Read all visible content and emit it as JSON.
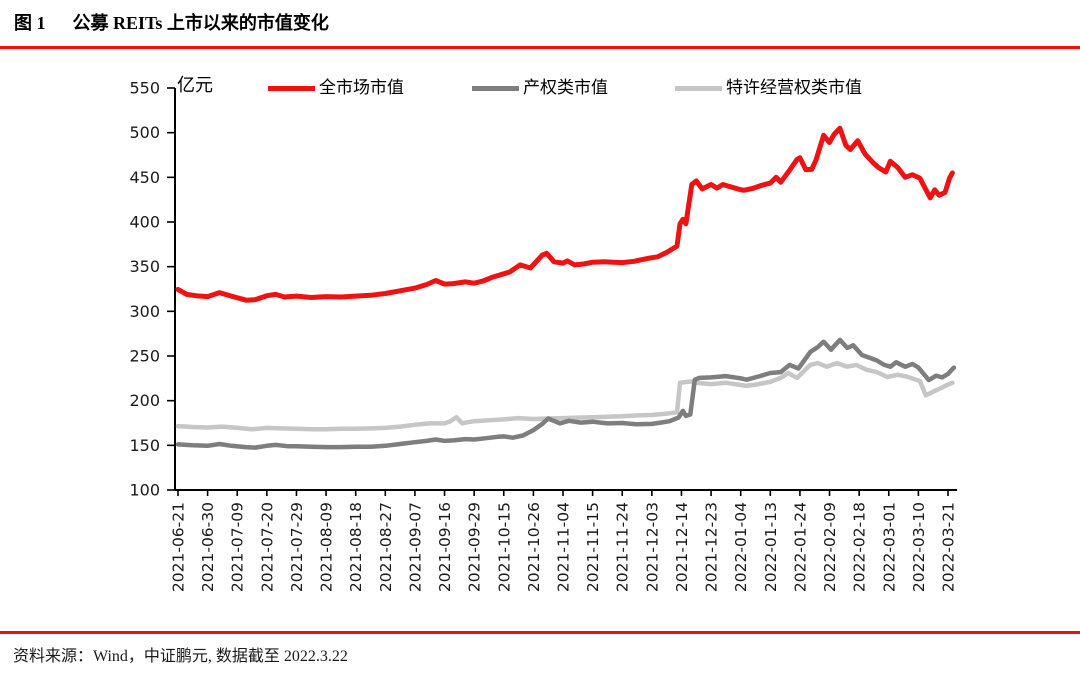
{
  "figure": {
    "label": "图 1",
    "title": "公募 REITs 上市以来的市值变化",
    "source": "资料来源：Wind，中证鹏元, 数据截至 2022.3.22",
    "accent_rule_color": "#f20d0d"
  },
  "chart_data": {
    "type": "line",
    "title": "公募 REITs 上市以来的市值变化",
    "ylabel": "亿元",
    "xlabel": "",
    "ylim": [
      100,
      550
    ],
    "ytick_interval": 50,
    "grid": false,
    "legend_position": "top",
    "axis_color": "#000000",
    "tick_label_color": "#1a1a1a",
    "x_value_unit": "x-tick index (fractional = dates between labeled ticks)",
    "x_tick_labels": [
      "2021-06-21",
      "2021-06-30",
      "2021-07-09",
      "2021-07-20",
      "2021-07-29",
      "2021-08-09",
      "2021-08-18",
      "2021-08-27",
      "2021-09-07",
      "2021-09-16",
      "2021-09-29",
      "2021-10-15",
      "2021-10-26",
      "2021-11-04",
      "2021-11-15",
      "2021-11-24",
      "2021-12-03",
      "2021-12-14",
      "2021-12-23",
      "2022-01-04",
      "2022-01-13",
      "2022-01-24",
      "2022-02-09",
      "2022-02-18",
      "2022-03-01",
      "2022-03-10",
      "2022-03-21"
    ],
    "series": [
      {
        "name": "全市场市值",
        "color": "#ee1212",
        "stroke_width": 5,
        "points": [
          [
            0,
            324.5
          ],
          [
            0.3,
            319
          ],
          [
            0.6,
            317.5
          ],
          [
            1,
            316.5
          ],
          [
            1.4,
            321
          ],
          [
            1.8,
            317
          ],
          [
            2.3,
            312.5
          ],
          [
            2.6,
            313
          ],
          [
            3,
            317.5
          ],
          [
            3.3,
            319
          ],
          [
            3.6,
            316
          ],
          [
            4,
            317
          ],
          [
            4.5,
            315.5
          ],
          [
            5,
            316.5
          ],
          [
            5.5,
            316
          ],
          [
            6,
            317
          ],
          [
            6.5,
            318
          ],
          [
            7,
            320
          ],
          [
            7.5,
            323
          ],
          [
            8,
            326
          ],
          [
            8.4,
            330
          ],
          [
            8.7,
            334.5
          ],
          [
            9,
            330.5
          ],
          [
            9.3,
            331
          ],
          [
            9.7,
            333
          ],
          [
            10,
            331.5
          ],
          [
            10.3,
            334
          ],
          [
            10.6,
            338
          ],
          [
            11,
            342
          ],
          [
            11.2,
            344
          ],
          [
            11.55,
            352
          ],
          [
            11.9,
            348.5
          ],
          [
            12.3,
            363
          ],
          [
            12.45,
            365
          ],
          [
            12.7,
            355.5
          ],
          [
            13,
            354
          ],
          [
            13.15,
            356.5
          ],
          [
            13.4,
            352
          ],
          [
            13.7,
            353
          ],
          [
            14,
            355
          ],
          [
            14.4,
            355.5
          ],
          [
            14.7,
            355
          ],
          [
            15,
            354.5
          ],
          [
            15.4,
            356
          ],
          [
            15.9,
            359.5
          ],
          [
            16.2,
            361
          ],
          [
            16.5,
            366
          ],
          [
            16.85,
            373
          ],
          [
            16.95,
            398
          ],
          [
            17.05,
            403
          ],
          [
            17.15,
            398
          ],
          [
            17.35,
            442
          ],
          [
            17.5,
            446
          ],
          [
            17.7,
            437
          ],
          [
            18,
            442
          ],
          [
            18.2,
            438
          ],
          [
            18.4,
            442
          ],
          [
            18.7,
            439
          ],
          [
            18.9,
            437
          ],
          [
            19.1,
            435.5
          ],
          [
            19.4,
            437.5
          ],
          [
            19.7,
            441
          ],
          [
            20,
            443.5
          ],
          [
            20.2,
            450
          ],
          [
            20.35,
            444.5
          ],
          [
            20.65,
            458
          ],
          [
            20.9,
            470
          ],
          [
            21,
            472
          ],
          [
            21.2,
            458.5
          ],
          [
            21.4,
            459
          ],
          [
            21.55,
            470
          ],
          [
            21.8,
            497
          ],
          [
            22,
            489
          ],
          [
            22.15,
            498
          ],
          [
            22.35,
            505
          ],
          [
            22.55,
            486
          ],
          [
            22.7,
            481
          ],
          [
            22.95,
            491
          ],
          [
            23.2,
            476
          ],
          [
            23.45,
            467
          ],
          [
            23.65,
            461
          ],
          [
            23.9,
            456
          ],
          [
            24.05,
            468
          ],
          [
            24.3,
            461
          ],
          [
            24.55,
            450
          ],
          [
            24.8,
            453
          ],
          [
            25.05,
            449
          ],
          [
            25.4,
            427
          ],
          [
            25.55,
            436
          ],
          [
            25.7,
            430
          ],
          [
            25.9,
            433
          ],
          [
            26.05,
            449
          ],
          [
            26.15,
            455
          ]
        ]
      },
      {
        "name": "产权类市值",
        "color": "#7e7e7e",
        "stroke_width": 4.5,
        "points": [
          [
            0,
            151
          ],
          [
            0.5,
            150
          ],
          [
            1,
            149.5
          ],
          [
            1.4,
            151.5
          ],
          [
            1.8,
            149.5
          ],
          [
            2.3,
            148
          ],
          [
            2.6,
            147.5
          ],
          [
            3,
            149.5
          ],
          [
            3.3,
            150.5
          ],
          [
            3.7,
            149
          ],
          [
            4,
            149
          ],
          [
            4.5,
            148.5
          ],
          [
            5,
            148
          ],
          [
            5.5,
            148
          ],
          [
            6,
            148.5
          ],
          [
            6.5,
            148.5
          ],
          [
            7,
            149.5
          ],
          [
            7.5,
            151.5
          ],
          [
            8,
            153.5
          ],
          [
            8.4,
            155
          ],
          [
            8.7,
            156.5
          ],
          [
            9,
            155
          ],
          [
            9.3,
            155.5
          ],
          [
            9.7,
            157
          ],
          [
            10,
            156.5
          ],
          [
            10.4,
            158
          ],
          [
            10.8,
            159.5
          ],
          [
            11,
            160
          ],
          [
            11.3,
            158.5
          ],
          [
            11.65,
            161
          ],
          [
            12,
            167
          ],
          [
            12.3,
            174
          ],
          [
            12.5,
            180
          ],
          [
            12.9,
            174.5
          ],
          [
            13.2,
            177.5
          ],
          [
            13.6,
            175.5
          ],
          [
            14,
            176.5
          ],
          [
            14.5,
            174.5
          ],
          [
            15,
            175
          ],
          [
            15.5,
            173.5
          ],
          [
            16,
            174
          ],
          [
            16.3,
            175.5
          ],
          [
            16.6,
            177
          ],
          [
            16.9,
            181
          ],
          [
            17.05,
            188.5
          ],
          [
            17.15,
            183
          ],
          [
            17.3,
            184.5
          ],
          [
            17.45,
            223.5
          ],
          [
            17.6,
            225.5
          ],
          [
            18,
            226
          ],
          [
            18.5,
            227.5
          ],
          [
            19,
            225
          ],
          [
            19.2,
            223.5
          ],
          [
            19.6,
            227
          ],
          [
            20,
            231
          ],
          [
            20.35,
            232
          ],
          [
            20.65,
            240
          ],
          [
            20.95,
            236
          ],
          [
            21.35,
            254.5
          ],
          [
            21.6,
            260
          ],
          [
            21.8,
            266
          ],
          [
            22.05,
            257
          ],
          [
            22.35,
            268
          ],
          [
            22.6,
            259
          ],
          [
            22.8,
            262
          ],
          [
            23.1,
            251
          ],
          [
            23.35,
            248
          ],
          [
            23.6,
            245
          ],
          [
            23.85,
            240
          ],
          [
            24.05,
            238
          ],
          [
            24.25,
            243
          ],
          [
            24.55,
            238
          ],
          [
            24.8,
            241
          ],
          [
            25,
            237
          ],
          [
            25.35,
            223
          ],
          [
            25.6,
            228
          ],
          [
            25.8,
            226
          ],
          [
            26,
            230
          ],
          [
            26.2,
            237
          ]
        ]
      },
      {
        "name": "特许经营权类市值",
        "color": "#c6c6c6",
        "stroke_width": 4.5,
        "points": [
          [
            0,
            171.5
          ],
          [
            0.5,
            170.5
          ],
          [
            1,
            170
          ],
          [
            1.5,
            171
          ],
          [
            2,
            169.5
          ],
          [
            2.5,
            168
          ],
          [
            3,
            169.5
          ],
          [
            3.5,
            169
          ],
          [
            4,
            168.5
          ],
          [
            4.5,
            168
          ],
          [
            5,
            168
          ],
          [
            5.5,
            168.5
          ],
          [
            6,
            168.5
          ],
          [
            6.5,
            169
          ],
          [
            7,
            169.5
          ],
          [
            7.5,
            171
          ],
          [
            8,
            173
          ],
          [
            8.5,
            174.5
          ],
          [
            9,
            174.5
          ],
          [
            9.2,
            177
          ],
          [
            9.4,
            181.5
          ],
          [
            9.6,
            174.5
          ],
          [
            9.8,
            176
          ],
          [
            10,
            177
          ],
          [
            10.5,
            178
          ],
          [
            11,
            179
          ],
          [
            11.5,
            180.5
          ],
          [
            12,
            179.5
          ],
          [
            12.5,
            180
          ],
          [
            13,
            180.5
          ],
          [
            13.5,
            181
          ],
          [
            14,
            181.5
          ],
          [
            14.5,
            182
          ],
          [
            15,
            182.5
          ],
          [
            15.5,
            183.5
          ],
          [
            16,
            184
          ],
          [
            16.5,
            185.5
          ],
          [
            16.85,
            187
          ],
          [
            16.95,
            220
          ],
          [
            17.3,
            221.5
          ],
          [
            17.5,
            220
          ],
          [
            18,
            218.5
          ],
          [
            18.5,
            220
          ],
          [
            19,
            217.5
          ],
          [
            19.2,
            216.5
          ],
          [
            19.5,
            218
          ],
          [
            20,
            221
          ],
          [
            20.35,
            225.5
          ],
          [
            20.6,
            231
          ],
          [
            20.9,
            225.5
          ],
          [
            21.35,
            240
          ],
          [
            21.6,
            242
          ],
          [
            21.9,
            238
          ],
          [
            22.25,
            242
          ],
          [
            22.6,
            238
          ],
          [
            22.9,
            240
          ],
          [
            23.25,
            234.5
          ],
          [
            23.6,
            232
          ],
          [
            23.95,
            226.5
          ],
          [
            24.3,
            229
          ],
          [
            24.6,
            227
          ],
          [
            25.05,
            222
          ],
          [
            25.25,
            206
          ],
          [
            25.5,
            210
          ],
          [
            25.75,
            214
          ],
          [
            26,
            218
          ],
          [
            26.15,
            220
          ]
        ]
      }
    ]
  }
}
